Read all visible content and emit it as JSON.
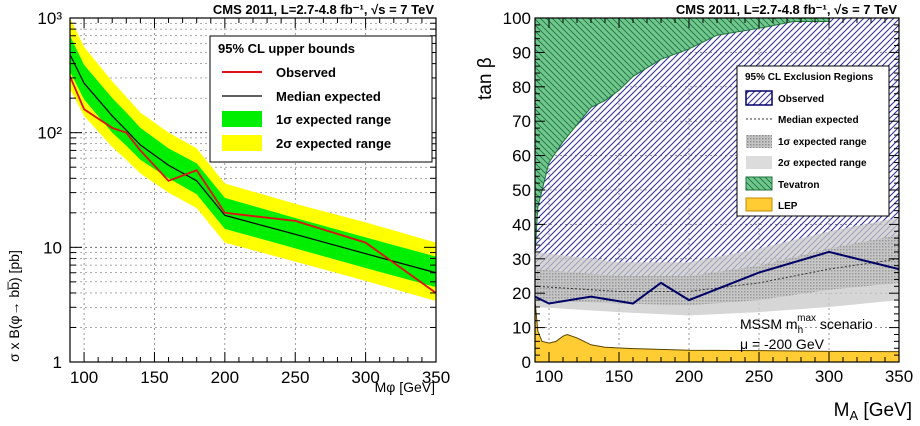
{
  "chart_data": [
    {
      "type": "line",
      "title": "CMS 2011, L=2.7-4.8 fb⁻¹, √s = 7 TeV",
      "xlabel": "Mφ [GeV]",
      "ylabel": "σ x B(φ→ bb̅) [pb]",
      "ylog": true,
      "xlim": [
        90,
        350
      ],
      "ylim": [
        1,
        1000
      ],
      "x_ticks": [
        "100",
        "150",
        "200",
        "250",
        "300",
        "350"
      ],
      "y_ticks": [
        "1",
        "10",
        "10²",
        "10³"
      ],
      "grid": true,
      "legend": {
        "title": "95% CL upper bounds",
        "position": "top-right",
        "entries": [
          "Observed",
          "Median expected",
          "1σ expected range",
          "2σ expected range"
        ]
      },
      "mass_points": [
        90,
        100,
        120,
        130,
        140,
        160,
        180,
        200,
        250,
        300,
        350
      ],
      "series": [
        {
          "name": "Observed",
          "color": "#dd1111",
          "values": [
            310,
            160,
            110,
            100,
            70,
            38,
            47,
            20,
            17,
            11,
            4
          ]
        },
        {
          "name": "Median expected",
          "color": "#000000",
          "values": [
            480,
            270,
            140,
            105,
            78,
            52,
            38,
            19,
            13,
            8.8,
            6
          ]
        }
      ],
      "bands": [
        {
          "name": "2σ expected range",
          "color": "#ffff00",
          "low": [
            240,
            140,
            75,
            58,
            44,
            30,
            22,
            11,
            7.5,
            5.1,
            3.4
          ],
          "high": [
            1000,
            560,
            280,
            205,
            150,
            100,
            73,
            36,
            24,
            16.5,
            11
          ]
        },
        {
          "name": "1σ expected range",
          "color": "#00ee00",
          "low": [
            340,
            195,
            100,
            77,
            58,
            40,
            29,
            14.5,
            9.8,
            6.6,
            4.5
          ],
          "high": [
            700,
            390,
            200,
            150,
            110,
            73,
            54,
            27,
            18,
            12.2,
            8.3
          ]
        }
      ]
    },
    {
      "type": "area",
      "title": "CMS 2011, L=2.7-4.8 fb⁻¹, √s = 7 TeV",
      "xlabel": "M_A [GeV]",
      "ylabel": "tan β",
      "xlim": [
        90,
        350
      ],
      "ylim": [
        0,
        100
      ],
      "x_ticks": [
        "100",
        "150",
        "200",
        "250",
        "300",
        "350"
      ],
      "y_ticks": [
        "0",
        "10",
        "20",
        "30",
        "40",
        "50",
        "60",
        "70",
        "80",
        "90",
        "100"
      ],
      "grid": true,
      "legend": {
        "title": "95% CL Exclusion Regions",
        "position": "top-right",
        "entries": [
          "Observed",
          "Median expected",
          "1σ expected range",
          "2σ expected range",
          "Tevatron",
          "LEP"
        ]
      },
      "annotation": {
        "line1": "MSSM m",
        "sub": "h",
        "sup": "max",
        "rest": " scenario",
        "line2": "μ = -200 GeV"
      },
      "observed": {
        "name": "Observed",
        "color": "#000066",
        "x": [
          90,
          100,
          130,
          160,
          180,
          200,
          250,
          300,
          350
        ],
        "y": [
          19,
          17,
          19,
          17,
          23,
          18,
          26,
          32,
          27
        ]
      },
      "expected": {
        "name": "Median expected",
        "x": [
          90,
          150,
          200,
          250,
          300,
          350
        ],
        "y": [
          22,
          20.5,
          20.5,
          23,
          27,
          30
        ]
      },
      "sigma1": {
        "name": "1σ expected range",
        "x": [
          90,
          150,
          200,
          250,
          300,
          350
        ],
        "low": [
          18,
          17,
          16.5,
          18,
          21,
          23
        ],
        "high": [
          27,
          25,
          25,
          28,
          33,
          37
        ]
      },
      "sigma2": {
        "name": "2σ expected range",
        "x": [
          90,
          150,
          200,
          250,
          300,
          350
        ],
        "low": [
          16,
          14.5,
          13.5,
          14.5,
          16,
          18
        ],
        "high": [
          32,
          29,
          29,
          33,
          38,
          42
        ]
      },
      "tevatron": {
        "name": "Tevatron",
        "color": "#2e9d4f",
        "x": [
          90,
          92,
          100,
          110,
          120,
          130,
          140,
          150,
          160,
          180,
          200,
          220,
          250,
          275,
          300,
          300.5
        ],
        "y": [
          31,
          45,
          58,
          64,
          69,
          74,
          76,
          79,
          83,
          88,
          91,
          95,
          97,
          99,
          99,
          100
        ]
      },
      "lep": {
        "name": "LEP",
        "color": "#ffcc33",
        "x": [
          90,
          92,
          95,
          100,
          105,
          110,
          113,
          120,
          130,
          140,
          160,
          200,
          250,
          300,
          350
        ],
        "y": [
          18,
          9,
          6,
          5.5,
          6,
          7.5,
          8,
          7,
          5,
          4.3,
          3.9,
          3.4,
          3.3,
          3.1,
          3
        ]
      }
    }
  ]
}
